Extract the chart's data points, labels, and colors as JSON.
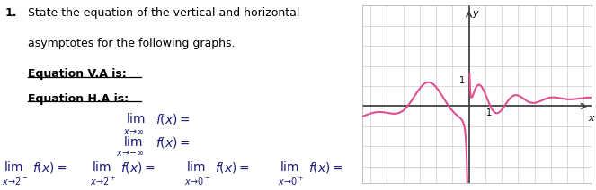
{
  "title_number": "1.",
  "title_line1": "State the equation of the vertical and horizontal",
  "title_line2": "asymptotes for the following graphs.",
  "eq_va": "Equation V.A is:",
  "eq_ha": "Equation H.A is:",
  "grid_color": "#cccccc",
  "axis_color": "#444444",
  "curve_color": "#e05090",
  "text_color": "#1a1a7e",
  "bg_color": "#ffffff"
}
